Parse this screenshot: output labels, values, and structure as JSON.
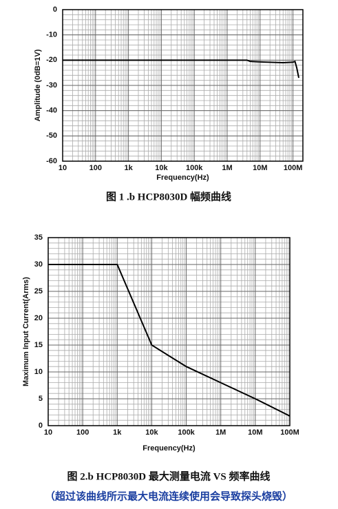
{
  "chart_data": [
    {
      "type": "line",
      "xlabel": "Frequency(Hz)",
      "ylabel": "Amplitude (0dB=1V)",
      "caption": "图 1 .b HCP8030D 幅频曲线",
      "x": [
        10,
        4000000,
        5000000,
        10000000,
        50000000,
        100000000,
        115000000,
        130000000,
        150000000
      ],
      "values": [
        -20,
        -20,
        -20.5,
        -20.7,
        -21,
        -20.8,
        -20.5,
        -23,
        -27
      ],
      "color": "#000000",
      "log_x": true,
      "grid": true,
      "minor_grid": true,
      "y_minor_step": 2,
      "xlim": [
        10,
        200000000
      ],
      "ylim": [
        -60,
        0
      ],
      "xticks": [
        10,
        100,
        {
          "value": 1000,
          "label": "1k"
        },
        {
          "value": 10000,
          "label": "10k"
        },
        {
          "value": 100000,
          "label": "100k"
        },
        {
          "value": 1000000,
          "label": "1M"
        },
        {
          "value": 10000000,
          "label": "10M"
        },
        {
          "value": 100000000,
          "label": "100M"
        }
      ],
      "yticks": [
        0,
        -10,
        -20,
        -30,
        -40,
        -50,
        -60
      ]
    },
    {
      "type": "line",
      "xlabel": "Frequency(Hz)",
      "ylabel": "Maximum Input Current(Arms)",
      "caption": "图 2.b HCP8030D 最大测量电流 VS 频率曲线",
      "note": "（超过该曲线所示最大电流连续使用会导致探头烧毁）",
      "x": [
        10,
        1000,
        10000,
        100000,
        1000000,
        10000000,
        100000000
      ],
      "values": [
        30,
        30,
        15,
        11,
        8,
        5,
        1.8
      ],
      "color": "#000000",
      "log_x": true,
      "grid": true,
      "minor_grid": true,
      "y_minor_step": 1,
      "xlim": [
        10,
        100000000
      ],
      "ylim": [
        0,
        35
      ],
      "xticks": [
        10,
        100,
        {
          "value": 1000,
          "label": "1k"
        },
        {
          "value": 10000,
          "label": "10k"
        },
        {
          "value": 100000,
          "label": "100k"
        },
        {
          "value": 1000000,
          "label": "1M"
        },
        {
          "value": 10000000,
          "label": "10M"
        },
        {
          "value": 100000000,
          "label": "100M"
        }
      ],
      "yticks": [
        0,
        5,
        10,
        15,
        20,
        25,
        30,
        35
      ]
    }
  ]
}
